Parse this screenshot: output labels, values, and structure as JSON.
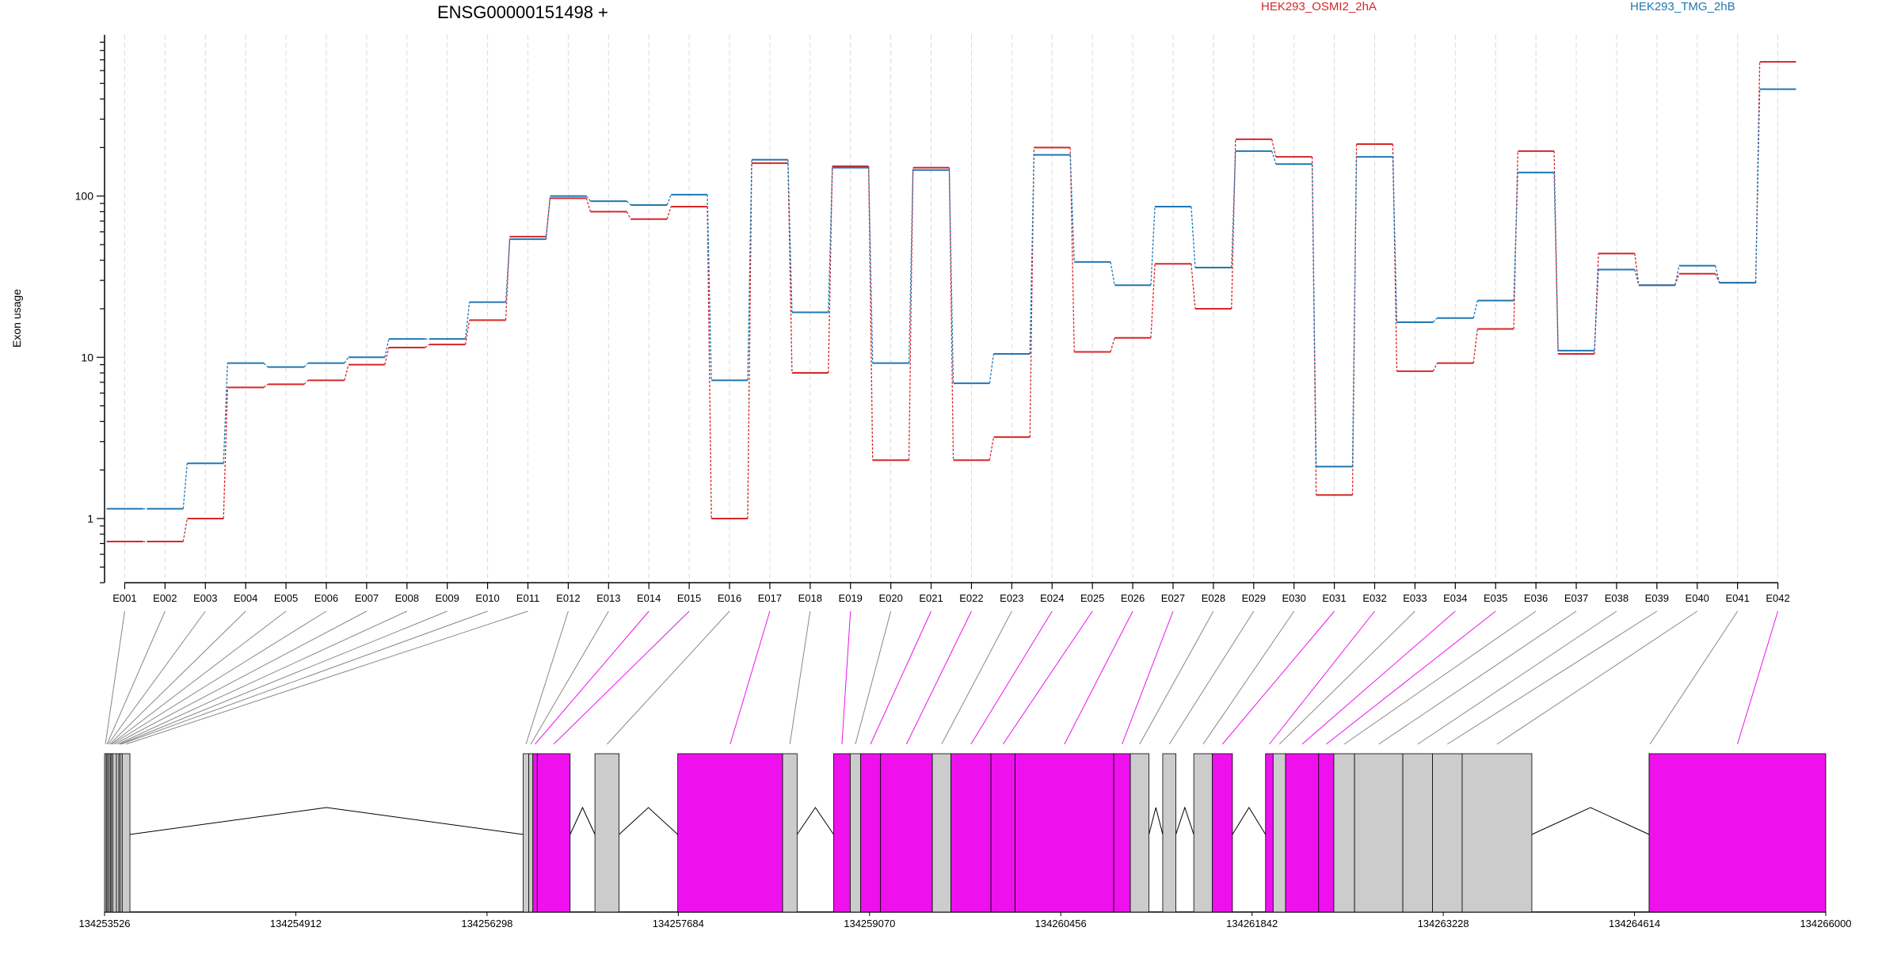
{
  "chart_data": {
    "type": "line",
    "title": "ENSG00000151498 +",
    "ylabel": "Exon usage",
    "y_scale": "log",
    "ylim": [
      0.4,
      1000
    ],
    "y_ticks": [
      {
        "value": 1,
        "label": "1"
      },
      {
        "value": 10,
        "label": "10"
      },
      {
        "value": 100,
        "label": "100"
      }
    ],
    "categories": [
      "E001",
      "E002",
      "E003",
      "E004",
      "E005",
      "E006",
      "E007",
      "E008",
      "E009",
      "E010",
      "E011",
      "E012",
      "E013",
      "E014",
      "E015",
      "E016",
      "E017",
      "E018",
      "E019",
      "E020",
      "E021",
      "E022",
      "E023",
      "E024",
      "E025",
      "E026",
      "E027",
      "E028",
      "E029",
      "E030",
      "E031",
      "E032",
      "E033",
      "E034",
      "E035",
      "E036",
      "E037",
      "E038",
      "E039",
      "E040",
      "E041",
      "E042"
    ],
    "series": [
      {
        "name": "HEK293_OSMI2_2hA",
        "color": "#d62728",
        "values": [
          0.72,
          0.72,
          1.0,
          6.5,
          6.8,
          7.2,
          9.0,
          11.5,
          12.0,
          17.0,
          56,
          97,
          80,
          72,
          86,
          1.0,
          160,
          8.0,
          153,
          2.3,
          150,
          2.3,
          3.2,
          200,
          10.8,
          13.2,
          38,
          20,
          225,
          175,
          1.4,
          210,
          8.2,
          9.2,
          15,
          190,
          10.5,
          44,
          28,
          33,
          29,
          680
        ]
      },
      {
        "name": "HEK293_TMG_2hB",
        "color": "#1f77b4",
        "values": [
          1.15,
          1.15,
          2.2,
          9.2,
          8.7,
          9.2,
          10,
          13,
          13,
          22,
          54,
          100,
          93,
          88,
          102,
          7.2,
          168,
          19,
          150,
          9.2,
          145,
          6.9,
          10.5,
          180,
          39,
          28,
          86,
          36,
          190,
          158,
          2.1,
          175,
          16.5,
          17.5,
          22.5,
          140,
          11,
          35,
          28,
          37,
          29,
          460
        ]
      }
    ],
    "gene_model": {
      "coordinate_ticks": [
        "134253526",
        "134254912",
        "134256298",
        "134257684",
        "134259070",
        "134260456",
        "134261842",
        "134263228",
        "134264614",
        "134266000"
      ],
      "exons": [
        {
          "id": "E001",
          "start": 134253526,
          "end": 134253538,
          "highlight": false
        },
        {
          "id": "E002",
          "start": 134253538,
          "end": 134253545,
          "highlight": false
        },
        {
          "id": "E003",
          "start": 134253545,
          "end": 134253558,
          "highlight": false
        },
        {
          "id": "E004",
          "start": 134253558,
          "end": 134253568,
          "highlight": false
        },
        {
          "id": "E005",
          "start": 134253568,
          "end": 134253576,
          "highlight": false
        },
        {
          "id": "E006",
          "start": 134253576,
          "end": 134253586,
          "highlight": false
        },
        {
          "id": "E007",
          "start": 134253586,
          "end": 134253612,
          "highlight": false
        },
        {
          "id": "E008",
          "start": 134253612,
          "end": 134253630,
          "highlight": false
        },
        {
          "id": "E009",
          "start": 134253630,
          "end": 134253640,
          "highlight": false
        },
        {
          "id": "E010",
          "start": 134253640,
          "end": 134253654,
          "highlight": false
        },
        {
          "id": "E011",
          "start": 134253654,
          "end": 134253710,
          "highlight": false
        },
        {
          "id": "E012",
          "start": 134256560,
          "end": 134256600,
          "highlight": false
        },
        {
          "id": "E013",
          "start": 134256600,
          "end": 134256630,
          "highlight": false
        },
        {
          "id": "E014",
          "start": 134256630,
          "end": 134256662,
          "highlight": true
        },
        {
          "id": "E015",
          "start": 134256662,
          "end": 134256900,
          "highlight": true
        },
        {
          "id": "E016",
          "start": 134257080,
          "end": 134257255,
          "highlight": false
        },
        {
          "id": "E017",
          "start": 134257680,
          "end": 134258440,
          "highlight": true
        },
        {
          "id": "E018",
          "start": 134258440,
          "end": 134258545,
          "highlight": false
        },
        {
          "id": "E019",
          "start": 134258810,
          "end": 134258930,
          "highlight": true
        },
        {
          "id": "E020",
          "start": 134258930,
          "end": 134259005,
          "highlight": false
        },
        {
          "id": "E021",
          "start": 134259005,
          "end": 134259150,
          "highlight": true
        },
        {
          "id": "E022",
          "start": 134259150,
          "end": 134259525,
          "highlight": true
        },
        {
          "id": "E023",
          "start": 134259525,
          "end": 134259660,
          "highlight": false
        },
        {
          "id": "E024",
          "start": 134259660,
          "end": 134259950,
          "highlight": true
        },
        {
          "id": "E025",
          "start": 134259950,
          "end": 134260125,
          "highlight": true
        },
        {
          "id": "E026",
          "start": 134260125,
          "end": 134260840,
          "highlight": true
        },
        {
          "id": "E027",
          "start": 134260840,
          "end": 134260960,
          "highlight": true
        },
        {
          "id": "E028",
          "start": 134260960,
          "end": 134261095,
          "highlight": false
        },
        {
          "id": "E029",
          "start": 134261195,
          "end": 134261290,
          "highlight": false
        },
        {
          "id": "E030",
          "start": 134261420,
          "end": 134261555,
          "highlight": false
        },
        {
          "id": "E031",
          "start": 134261555,
          "end": 134261700,
          "highlight": true
        },
        {
          "id": "E032",
          "start": 134261940,
          "end": 134261995,
          "highlight": true
        },
        {
          "id": "E033",
          "start": 134261995,
          "end": 134262085,
          "highlight": false
        },
        {
          "id": "E034",
          "start": 134262085,
          "end": 134262325,
          "highlight": true
        },
        {
          "id": "E035",
          "start": 134262325,
          "end": 134262435,
          "highlight": true
        },
        {
          "id": "E036",
          "start": 134262435,
          "end": 134262585,
          "highlight": false
        },
        {
          "id": "E037",
          "start": 134262585,
          "end": 134262935,
          "highlight": false
        },
        {
          "id": "E038",
          "start": 134262935,
          "end": 134263150,
          "highlight": false
        },
        {
          "id": "E039",
          "start": 134263150,
          "end": 134263365,
          "highlight": false
        },
        {
          "id": "E040",
          "start": 134263365,
          "end": 134263870,
          "highlight": false
        },
        {
          "id": "E041",
          "start": 134264720,
          "end": 134264720,
          "highlight": false
        },
        {
          "id": "E042",
          "start": 134264720,
          "end": 134266000,
          "highlight": true
        }
      ],
      "highlight_color": "#ee11ee",
      "exon_color": "#cccccc"
    }
  }
}
